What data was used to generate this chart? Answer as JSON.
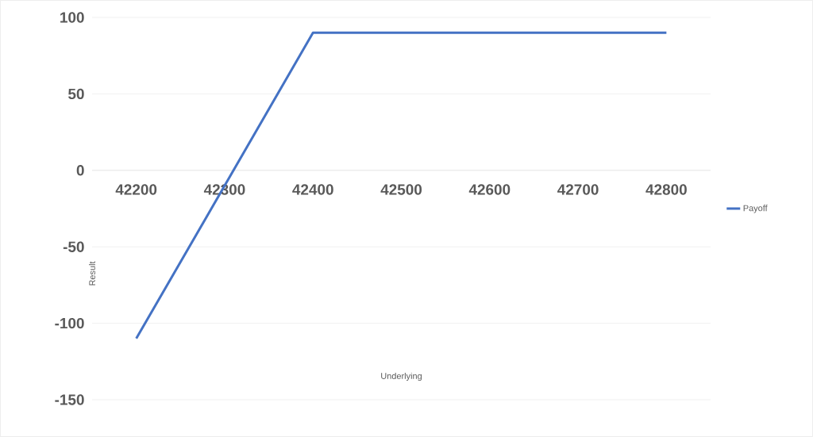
{
  "chart_data": {
    "type": "line",
    "xlabel": "Underlying",
    "ylabel": "Result",
    "categories": [
      "42200",
      "42300",
      "42400",
      "42500",
      "42600",
      "42700",
      "42800"
    ],
    "series": [
      {
        "name": "Payoff",
        "color": "#4472c4",
        "values": [
          -110,
          -10,
          90,
          90,
          90,
          90,
          90
        ]
      }
    ],
    "ylim": [
      -150,
      100
    ],
    "yticks": [
      -150,
      -100,
      -50,
      0,
      50,
      100
    ],
    "grid": "y",
    "legend": "right",
    "marker": "none",
    "line_style": "solid"
  }
}
